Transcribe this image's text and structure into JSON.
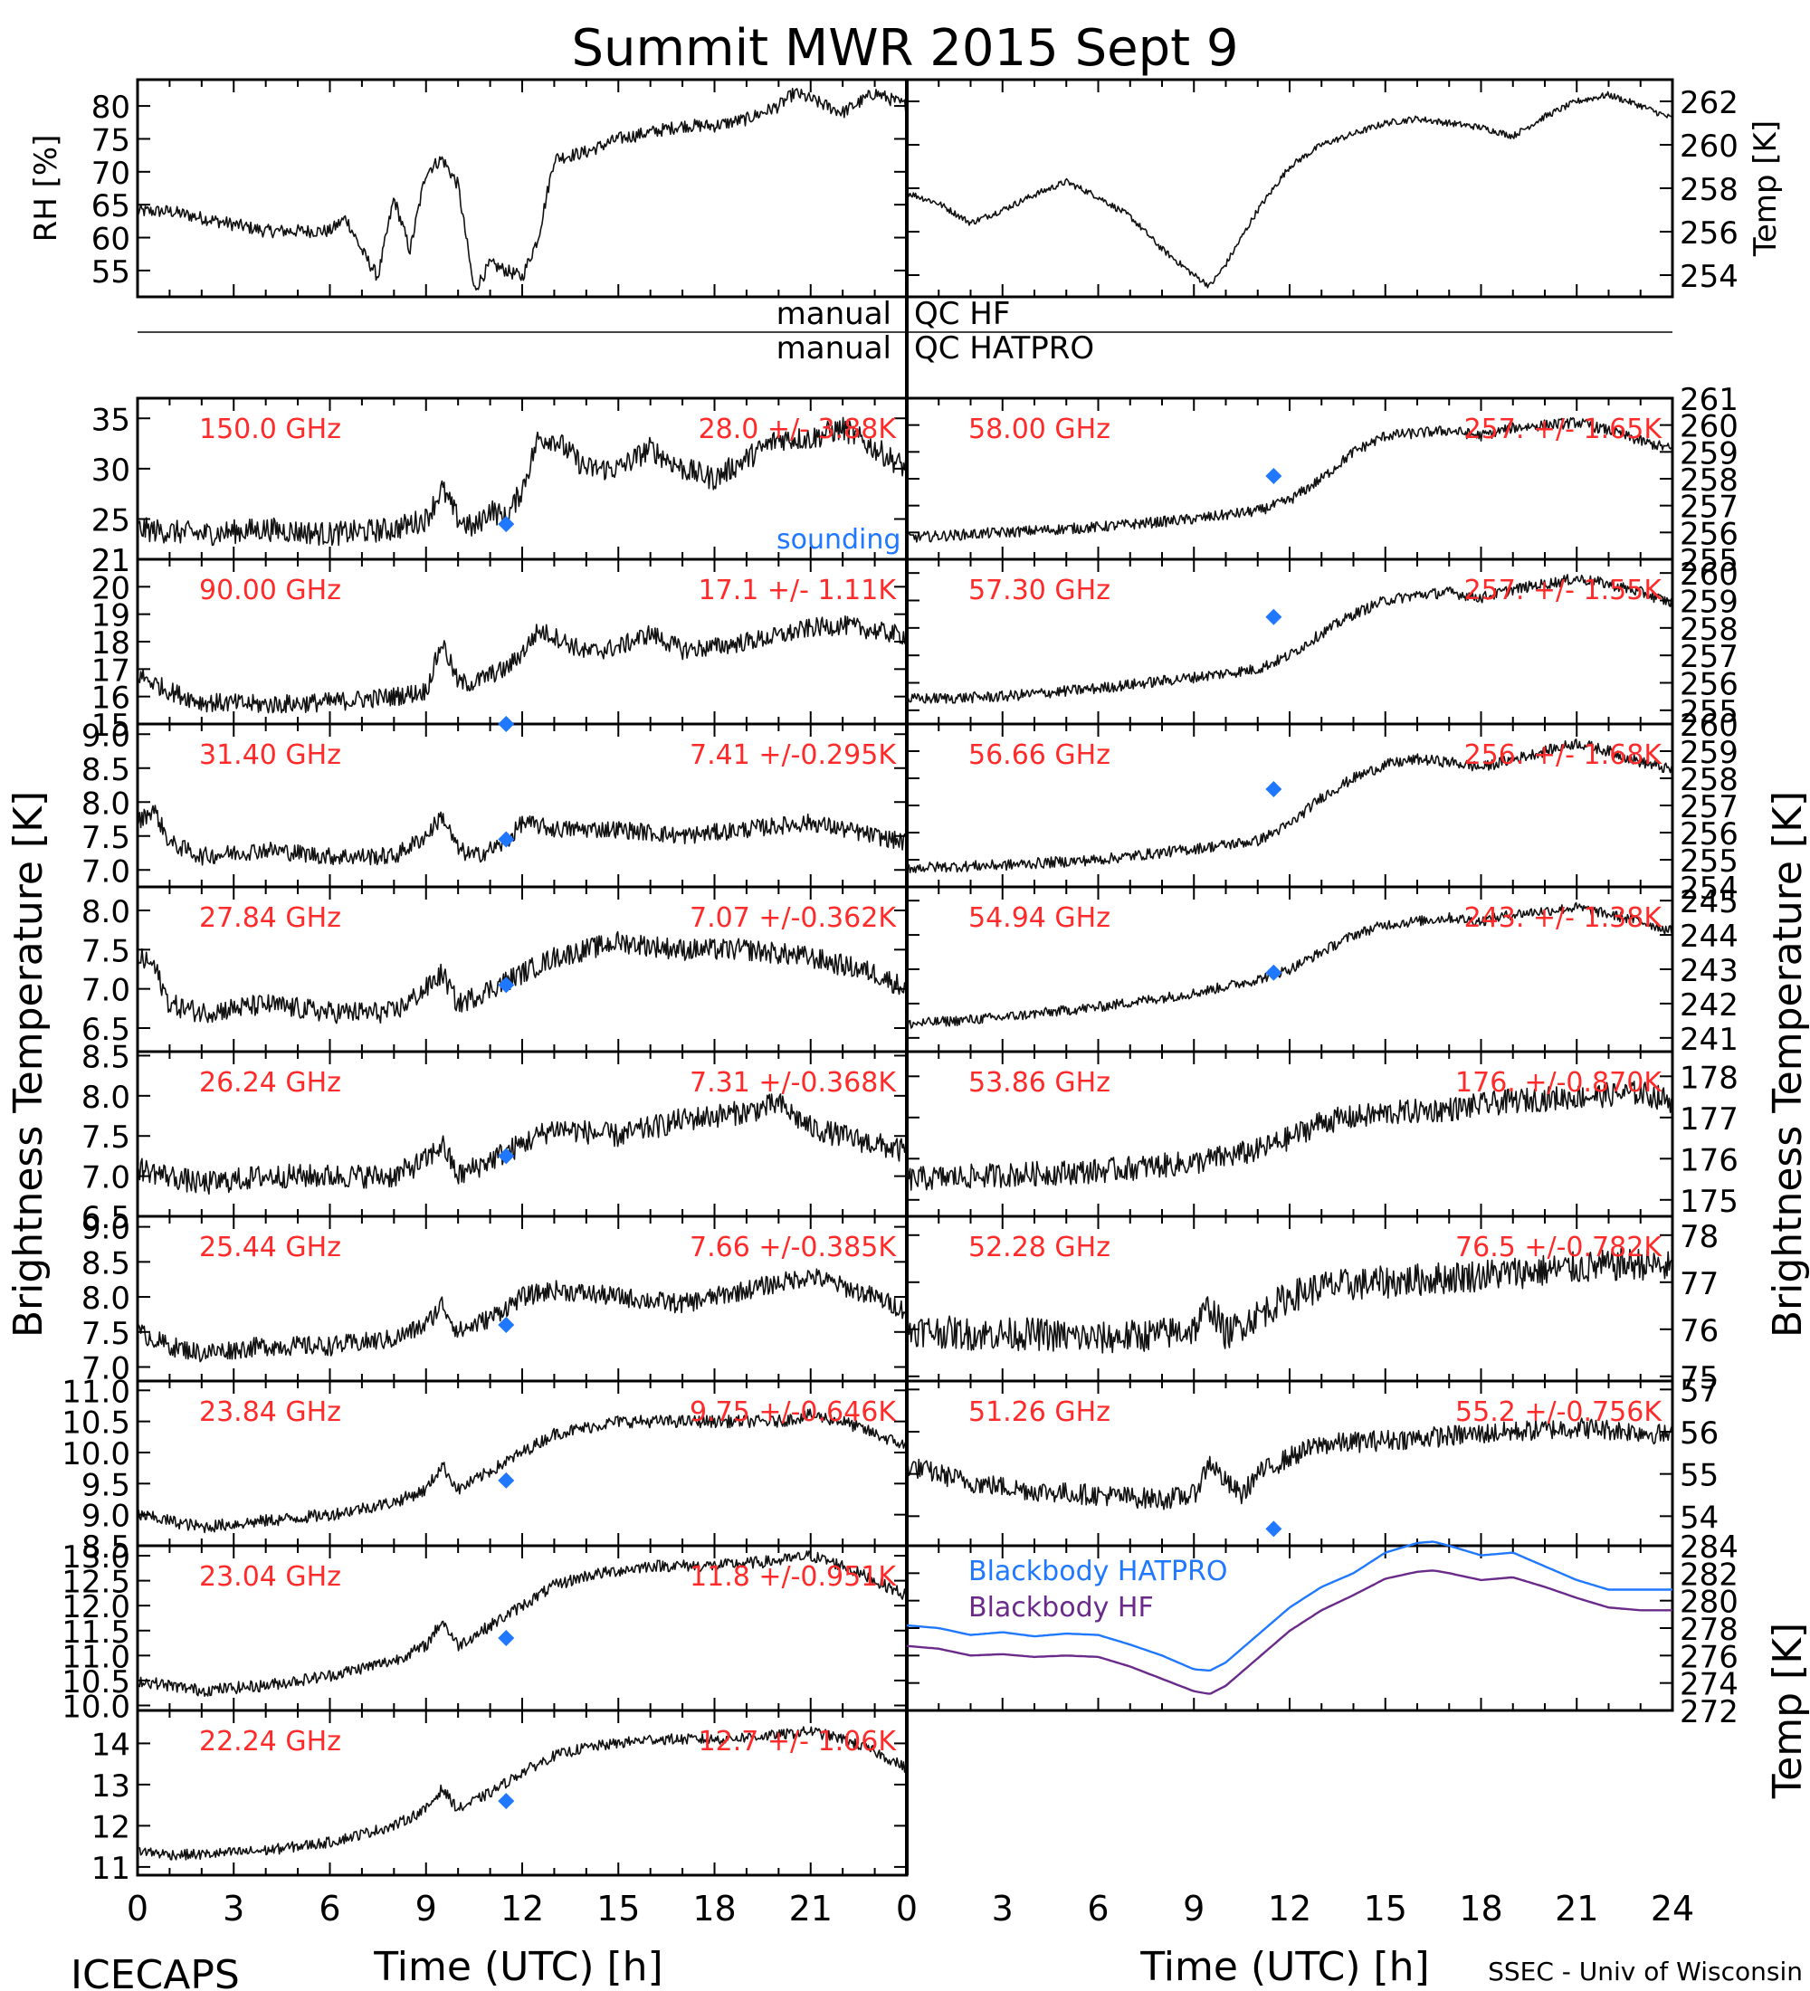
{
  "title": "Summit MWR 2015 Sept  9",
  "footer": {
    "left": "ICECAPS",
    "right": "SSEC - Univ of Wisconsin",
    "xlabel": "Time (UTC) [h]"
  },
  "x_ticks": [
    "0",
    "3",
    "6",
    "9",
    "12",
    "15",
    "18",
    "21",
    "24"
  ],
  "colors": {
    "trace": "#111111",
    "label_red": "#ff2a2a",
    "sounding_blue": "#1f78ff",
    "blackbody_hf": "#6a2a8a",
    "frame": "#000000"
  },
  "qc": {
    "left_labels": [
      "manual",
      "manual"
    ],
    "right_labels": [
      "QC HF",
      "QC HATPRO"
    ]
  },
  "chart_data": [
    {
      "type": "line",
      "id": "rh",
      "ylabel": "RH [%]",
      "xlim": [
        0,
        24
      ],
      "ylim": [
        51,
        84
      ],
      "ticks": [
        55,
        60,
        65,
        70,
        75,
        80
      ],
      "x": [
        0,
        1,
        2,
        3,
        4,
        5,
        6,
        6.5,
        7,
        7.5,
        8,
        8.5,
        9,
        9.5,
        10,
        10.5,
        11,
        11.5,
        12,
        12.5,
        13,
        14,
        15,
        16,
        17,
        18,
        19,
        20,
        20.5,
        21,
        22,
        23,
        24
      ],
      "y": [
        64,
        64,
        63,
        62,
        61,
        61,
        61,
        63,
        58,
        54,
        66,
        58,
        70,
        72,
        68,
        52,
        56,
        55,
        54,
        60,
        72,
        73,
        75,
        76,
        77,
        77,
        78,
        80,
        82,
        81,
        79,
        82,
        80
      ],
      "noise": 1.0
    },
    {
      "type": "line",
      "id": "temp_surface",
      "ylabel": "Temp [K]",
      "xlim": [
        0,
        24
      ],
      "ylim": [
        253,
        263
      ],
      "ticks": [
        254,
        256,
        258,
        260,
        262
      ],
      "x": [
        0,
        1,
        2,
        3,
        4,
        5,
        6,
        7,
        8,
        9,
        9.5,
        10,
        11,
        12,
        13,
        14,
        15,
        16,
        17,
        18,
        19,
        20,
        21,
        22,
        23,
        24
      ],
      "y": [
        257.8,
        257.3,
        256.4,
        257.0,
        257.7,
        258.3,
        257.6,
        256.7,
        255.2,
        254.0,
        253.5,
        254.5,
        257.0,
        259.0,
        260.0,
        260.5,
        261.0,
        261.2,
        261.0,
        260.8,
        260.4,
        261.3,
        262.0,
        262.3,
        261.8,
        261.2
      ],
      "noise": 0.15
    },
    {
      "type": "line",
      "id": "ch150",
      "freq": "150.0 GHz",
      "stat": "28.0 +/- 3.88K",
      "xlim": [
        0,
        24
      ],
      "ylim": [
        21,
        37
      ],
      "ticks": [
        21,
        25,
        30,
        35
      ],
      "x": [
        0,
        2,
        4,
        6,
        8,
        9,
        9.5,
        10,
        10.5,
        11,
        11.5,
        12,
        12.5,
        13,
        14,
        15,
        16,
        17,
        18,
        19,
        20,
        21,
        22,
        23,
        24
      ],
      "y": [
        24,
        23.5,
        24,
        23.5,
        24,
        25,
        28,
        25,
        24,
        26,
        25,
        28,
        33,
        33,
        30,
        30,
        32,
        30,
        29,
        31,
        33,
        33,
        34,
        32,
        30
      ],
      "noise": 1.2,
      "sounding": 24.5,
      "sounding_label": "sounding"
    },
    {
      "type": "line",
      "id": "ch58",
      "freq": "58.00 GHz",
      "stat": "257.  +/- 1.65K",
      "xlim": [
        0,
        24
      ],
      "ylim": [
        255,
        261
      ],
      "ticks": [
        255,
        256,
        257,
        258,
        259,
        260,
        261
      ],
      "x": [
        0,
        3,
        6,
        9,
        11,
        12,
        13,
        14,
        15,
        16,
        17,
        18,
        19,
        20,
        21,
        22,
        23,
        24
      ],
      "y": [
        255.8,
        256.0,
        256.2,
        256.5,
        256.8,
        257.2,
        258.0,
        259.0,
        259.6,
        259.7,
        259.8,
        259.6,
        259.9,
        260.0,
        260.1,
        259.8,
        259.4,
        259.1
      ],
      "noise": 0.2,
      "sounding": 258.1
    },
    {
      "type": "line",
      "id": "ch90",
      "freq": "90.00 GHz",
      "stat": "17.1 +/-  1.11K",
      "xlim": [
        0,
        24
      ],
      "ylim": [
        15,
        21
      ],
      "ticks": [
        15,
        16,
        17,
        18,
        19,
        20,
        21
      ],
      "x": [
        0,
        1,
        2,
        4,
        6,
        8,
        9,
        9.5,
        10,
        10.5,
        11,
        11.5,
        12,
        12.5,
        13,
        14,
        15,
        16,
        17,
        18,
        19,
        20,
        21,
        22,
        23,
        24
      ],
      "y": [
        16.8,
        16.2,
        15.8,
        15.7,
        15.8,
        16.0,
        16.2,
        18.0,
        16.5,
        16.5,
        16.8,
        17.0,
        17.6,
        18.4,
        18.2,
        17.6,
        17.8,
        18.3,
        17.7,
        17.8,
        18.0,
        18.2,
        18.5,
        18.6,
        18.4,
        18.2
      ],
      "noise": 0.35,
      "sounding": 15.0
    },
    {
      "type": "line",
      "id": "ch57_30",
      "freq": "57.30 GHz",
      "stat": "257.  +/- 1.55K",
      "xlim": [
        0,
        24
      ],
      "ylim": [
        254.5,
        260.5
      ],
      "ticks": [
        255,
        256,
        257,
        258,
        259,
        260
      ],
      "x": [
        0,
        3,
        6,
        9,
        11,
        12,
        13,
        14,
        15,
        16,
        17,
        18,
        19,
        20,
        21,
        22,
        23,
        24
      ],
      "y": [
        255.4,
        255.5,
        255.8,
        256.2,
        256.5,
        257.0,
        257.8,
        258.5,
        259.0,
        259.2,
        259.3,
        259.1,
        259.4,
        259.6,
        259.8,
        259.6,
        259.3,
        258.9
      ],
      "noise": 0.2,
      "sounding": 258.4
    },
    {
      "type": "line",
      "id": "ch31_40",
      "freq": "31.40 GHz",
      "stat": "7.41 +/-0.295K",
      "xlim": [
        0,
        24
      ],
      "ylim": [
        6.75,
        9.15
      ],
      "ticks": [
        7.0,
        7.5,
        8.0,
        8.5,
        9.0
      ],
      "x": [
        0,
        0.5,
        1,
        2,
        4,
        6,
        8,
        9,
        9.5,
        10,
        10.5,
        11,
        11.5,
        12,
        13,
        15,
        17,
        19,
        21,
        23,
        24
      ],
      "y": [
        7.7,
        7.9,
        7.4,
        7.2,
        7.3,
        7.2,
        7.2,
        7.5,
        7.8,
        7.3,
        7.2,
        7.3,
        7.4,
        7.7,
        7.6,
        7.6,
        7.5,
        7.6,
        7.7,
        7.5,
        7.4
      ],
      "noise": 0.13,
      "sounding": 7.45
    },
    {
      "type": "line",
      "id": "ch56_66",
      "freq": "56.66 GHz",
      "stat": "256.  +/- 1.68K",
      "xlim": [
        0,
        24
      ],
      "ylim": [
        254,
        260
      ],
      "ticks": [
        254,
        255,
        256,
        257,
        258,
        259,
        260
      ],
      "x": [
        0,
        3,
        6,
        9,
        11,
        12,
        13,
        14,
        15,
        16,
        17,
        18,
        19,
        20,
        21,
        22,
        23,
        24
      ],
      "y": [
        254.7,
        254.8,
        255.0,
        255.4,
        255.7,
        256.3,
        257.3,
        258.0,
        258.5,
        258.7,
        258.6,
        258.4,
        258.7,
        259.0,
        259.3,
        259.0,
        258.6,
        258.3
      ],
      "noise": 0.2,
      "sounding": 257.6
    },
    {
      "type": "line",
      "id": "ch27_84",
      "freq": "27.84 GHz",
      "stat": "7.07 +/-0.362K",
      "xlim": [
        0,
        24
      ],
      "ylim": [
        6.2,
        8.3
      ],
      "ticks": [
        6.5,
        7.0,
        7.5,
        8.0
      ],
      "x": [
        0,
        0.5,
        1,
        2,
        4,
        6,
        8,
        9,
        9.5,
        10,
        11,
        12,
        13,
        15,
        17,
        19,
        21,
        23,
        24
      ],
      "y": [
        7.4,
        7.3,
        6.8,
        6.7,
        6.8,
        6.7,
        6.7,
        7.0,
        7.2,
        6.8,
        7.0,
        7.2,
        7.4,
        7.6,
        7.5,
        7.5,
        7.4,
        7.2,
        7.0
      ],
      "noise": 0.14,
      "sounding": 7.05
    },
    {
      "type": "line",
      "id": "ch54_94",
      "freq": "54.94 GHz",
      "stat": "243.  +/- 1.38K",
      "xlim": [
        0,
        24
      ],
      "ylim": [
        240.6,
        245.4
      ],
      "ticks": [
        241,
        242,
        243,
        244,
        245
      ],
      "x": [
        0,
        3,
        6,
        9,
        11,
        12,
        13,
        14,
        15,
        16,
        17,
        18,
        19,
        20,
        21,
        22,
        23,
        24
      ],
      "y": [
        241.4,
        241.6,
        241.9,
        242.3,
        242.7,
        243.0,
        243.5,
        244.0,
        244.3,
        244.4,
        244.5,
        244.4,
        244.6,
        244.7,
        244.8,
        244.6,
        244.4,
        244.1
      ],
      "noise": 0.15,
      "sounding": 242.9
    },
    {
      "type": "line",
      "id": "ch26_24",
      "freq": "26.24 GHz",
      "stat": "7.31 +/-0.368K",
      "xlim": [
        0,
        24
      ],
      "ylim": [
        6.5,
        8.55
      ],
      "ticks": [
        6.5,
        7.0,
        7.5,
        8.0,
        8.5
      ],
      "x": [
        0,
        1,
        2,
        4,
        6,
        8,
        9,
        9.5,
        10,
        11,
        12,
        13,
        15,
        17,
        19,
        20,
        21,
        22,
        23,
        24
      ],
      "y": [
        7.1,
        7.0,
        6.9,
        7.0,
        7.0,
        7.0,
        7.2,
        7.4,
        7.0,
        7.2,
        7.4,
        7.6,
        7.5,
        7.7,
        7.8,
        7.9,
        7.6,
        7.5,
        7.4,
        7.3
      ],
      "noise": 0.15,
      "sounding": 7.25
    },
    {
      "type": "line",
      "id": "ch53_86",
      "freq": "53.86 GHz",
      "stat": "176.  +/-0.870K",
      "xlim": [
        0,
        24
      ],
      "ylim": [
        174.6,
        178.6
      ],
      "ticks": [
        175,
        176,
        177,
        178
      ],
      "x": [
        0,
        3,
        6,
        9,
        11,
        12,
        13,
        15,
        17,
        19,
        21,
        23,
        24
      ],
      "y": [
        175.5,
        175.6,
        175.7,
        175.9,
        176.2,
        176.5,
        176.9,
        177.1,
        177.2,
        177.4,
        177.5,
        177.6,
        177.4
      ],
      "noise": 0.3
    },
    {
      "type": "line",
      "id": "ch25_44",
      "freq": "25.44 GHz",
      "stat": "7.66 +/-0.385K",
      "xlim": [
        0,
        24
      ],
      "ylim": [
        6.8,
        9.15
      ],
      "ticks": [
        7.0,
        7.5,
        8.0,
        8.5,
        9.0
      ],
      "x": [
        0,
        1,
        2,
        4,
        6,
        8,
        9,
        9.5,
        10,
        11,
        12,
        13,
        15,
        17,
        19,
        21,
        23,
        24
      ],
      "y": [
        7.5,
        7.3,
        7.2,
        7.3,
        7.3,
        7.4,
        7.6,
        7.9,
        7.5,
        7.7,
        8.0,
        8.1,
        8.0,
        7.9,
        8.1,
        8.3,
        8.0,
        7.8
      ],
      "noise": 0.14,
      "sounding": 7.6
    },
    {
      "type": "line",
      "id": "ch52_28",
      "freq": "52.28 GHz",
      "stat": "76.5 +/-0.782K",
      "xlim": [
        0,
        24
      ],
      "ylim": [
        74.9,
        78.4
      ],
      "ticks": [
        75,
        76,
        77,
        78
      ],
      "x": [
        0,
        2,
        4,
        6,
        8,
        9,
        9.5,
        10,
        11,
        12,
        13,
        15,
        17,
        19,
        21,
        23,
        24
      ],
      "y": [
        76.0,
        75.9,
        75.9,
        75.8,
        75.9,
        76.0,
        76.5,
        75.9,
        76.3,
        76.7,
        76.9,
        77.0,
        77.1,
        77.2,
        77.3,
        77.4,
        77.3
      ],
      "noise": 0.35
    },
    {
      "type": "line",
      "id": "ch23_84",
      "freq": "23.84 GHz",
      "stat": "9.75 +/-0.646K",
      "xlim": [
        0,
        24
      ],
      "ylim": [
        8.5,
        11.15
      ],
      "ticks": [
        8.5,
        9.0,
        9.5,
        10.0,
        10.5,
        11.0
      ],
      "x": [
        0,
        1,
        2,
        4,
        6,
        8,
        9,
        9.5,
        10,
        11,
        12,
        13,
        14,
        15,
        16,
        18,
        20,
        21,
        22,
        23,
        24
      ],
      "y": [
        9.0,
        8.9,
        8.8,
        8.9,
        9.0,
        9.2,
        9.4,
        9.8,
        9.4,
        9.7,
        10.0,
        10.3,
        10.4,
        10.5,
        10.5,
        10.5,
        10.5,
        10.6,
        10.5,
        10.3,
        10.1
      ],
      "noise": 0.1,
      "sounding": 9.55
    },
    {
      "type": "line",
      "id": "ch51_26",
      "freq": "51.26 GHz",
      "stat": "55.2 +/-0.756K",
      "xlim": [
        0,
        24
      ],
      "ylim": [
        53.3,
        57.2
      ],
      "ticks": [
        54,
        55,
        56,
        57
      ],
      "x": [
        0,
        1,
        2,
        4,
        6,
        8,
        9,
        9.5,
        10,
        10.5,
        11,
        12,
        13,
        15,
        17,
        19,
        21,
        23,
        24
      ],
      "y": [
        55.2,
        55.0,
        54.8,
        54.6,
        54.5,
        54.4,
        54.5,
        55.3,
        54.8,
        54.5,
        55.0,
        55.4,
        55.7,
        55.8,
        55.9,
        56.0,
        56.1,
        56.0,
        55.9
      ],
      "noise": 0.25,
      "sounding": 53.7
    },
    {
      "type": "line",
      "id": "ch23_04",
      "freq": "23.04 GHz",
      "stat": "11.8 +/-0.951K",
      "xlim": [
        0,
        24
      ],
      "ylim": [
        9.9,
        13.2
      ],
      "ticks": [
        10.0,
        10.5,
        11.0,
        11.5,
        12.0,
        12.5,
        13.0
      ],
      "x": [
        0,
        1,
        2,
        4,
        6,
        8,
        9,
        9.5,
        10,
        11,
        12,
        13,
        14,
        15,
        16,
        18,
        20,
        21,
        22,
        23,
        24
      ],
      "y": [
        10.5,
        10.4,
        10.3,
        10.4,
        10.6,
        10.9,
        11.2,
        11.7,
        11.2,
        11.6,
        12.0,
        12.4,
        12.6,
        12.7,
        12.8,
        12.8,
        12.9,
        13.0,
        12.8,
        12.5,
        12.2
      ],
      "noise": 0.12,
      "sounding": 11.35
    },
    {
      "type": "line",
      "id": "ch22_24",
      "freq": "22.24 GHz",
      "stat": "12.7 +/- 1.06K",
      "xlim": [
        0,
        24
      ],
      "ylim": [
        10.8,
        14.8
      ],
      "ticks": [
        11,
        12,
        13,
        14
      ],
      "x": [
        0,
        1,
        2,
        4,
        6,
        8,
        9,
        9.5,
        10,
        11,
        12,
        13,
        14,
        15,
        16,
        18,
        20,
        21,
        22,
        23,
        24
      ],
      "y": [
        11.4,
        11.3,
        11.3,
        11.4,
        11.6,
        12.0,
        12.4,
        12.9,
        12.4,
        12.8,
        13.3,
        13.7,
        13.9,
        14.0,
        14.1,
        14.1,
        14.2,
        14.3,
        14.1,
        13.8,
        13.4
      ],
      "noise": 0.13,
      "sounding": 12.6
    },
    {
      "type": "line",
      "id": "blackbody",
      "ylabel": "Temp [K]",
      "xlim": [
        0,
        24
      ],
      "ylim": [
        272,
        284
      ],
      "ticks": [
        272,
        274,
        276,
        278,
        280,
        282,
        284
      ],
      "series": [
        {
          "name": "Blackbody HATPRO",
          "x": [
            0,
            1,
            2,
            3,
            4,
            5,
            6,
            7,
            8,
            9,
            9.5,
            10,
            11,
            12,
            13,
            14,
            15,
            16,
            16.5,
            17,
            18,
            19,
            20,
            21,
            22,
            23,
            24
          ],
          "y": [
            278.2,
            278.0,
            277.5,
            277.7,
            277.4,
            277.6,
            277.5,
            276.8,
            276.0,
            275.0,
            274.9,
            275.5,
            277.5,
            279.5,
            281.0,
            282.0,
            283.5,
            284.2,
            284.3,
            284.0,
            283.3,
            283.5,
            282.5,
            281.5,
            280.8,
            280.8,
            280.8
          ]
        },
        {
          "name": "Blackbody HF",
          "x": [
            0,
            1,
            2,
            3,
            4,
            5,
            6,
            7,
            8,
            9,
            9.5,
            10,
            11,
            12,
            13,
            14,
            15,
            16,
            16.5,
            17,
            18,
            19,
            20,
            21,
            22,
            23,
            24
          ],
          "y": [
            276.7,
            276.5,
            276.0,
            276.1,
            275.9,
            276.0,
            275.9,
            275.2,
            274.3,
            273.4,
            273.2,
            273.8,
            275.8,
            277.8,
            279.3,
            280.4,
            281.6,
            282.1,
            282.2,
            282.0,
            281.5,
            281.7,
            281.0,
            280.2,
            279.5,
            279.3,
            279.3
          ]
        }
      ]
    }
  ],
  "left_panel_ylabel": "Brightness Temperature [K]",
  "right_panel_ylabel": "Brightness Temperature [K]"
}
